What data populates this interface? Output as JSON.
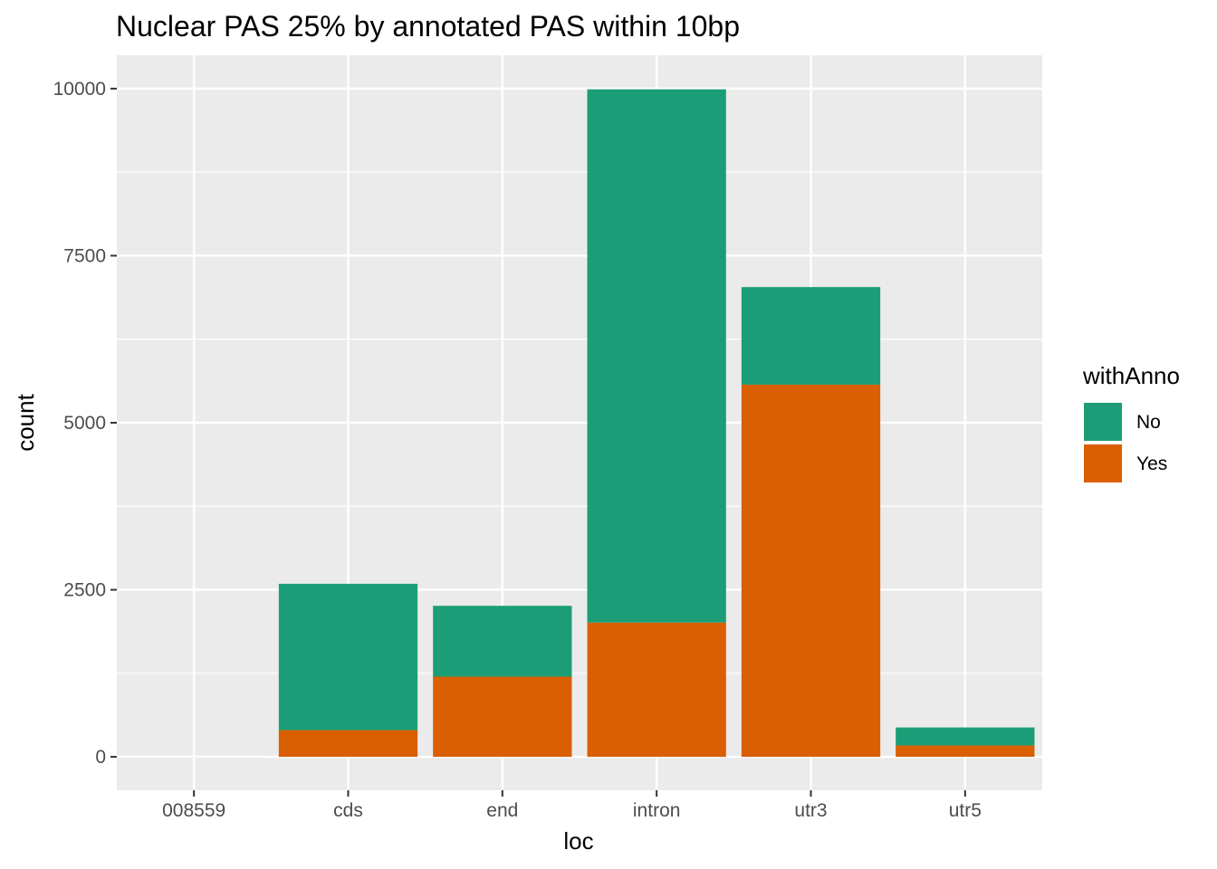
{
  "chart_data": {
    "type": "bar",
    "stacked": true,
    "title": "Nuclear PAS 25% by annotated PAS within 10bp",
    "xlabel": "loc",
    "ylabel": "count",
    "categories": [
      "008559",
      "cds",
      "end",
      "intron",
      "utr3",
      "utr5"
    ],
    "series": [
      {
        "name": "No",
        "color": "#1b9e77",
        "values": [
          1,
          2190,
          1060,
          7980,
          1460,
          270
        ]
      },
      {
        "name": "Yes",
        "color": "#d95f02",
        "values": [
          0,
          400,
          1200,
          2010,
          5570,
          170
        ]
      }
    ],
    "ylim": [
      -500,
      10500
    ],
    "yticks": [
      0,
      2500,
      5000,
      7500,
      10000
    ],
    "ytick_labels": [
      "0",
      "2500",
      "5000",
      "7500",
      "10000"
    ],
    "grid": true,
    "panel_background": "#ebebeb",
    "legend": {
      "title": "withAnno",
      "position": "right",
      "entries": [
        "No",
        "Yes"
      ]
    }
  }
}
